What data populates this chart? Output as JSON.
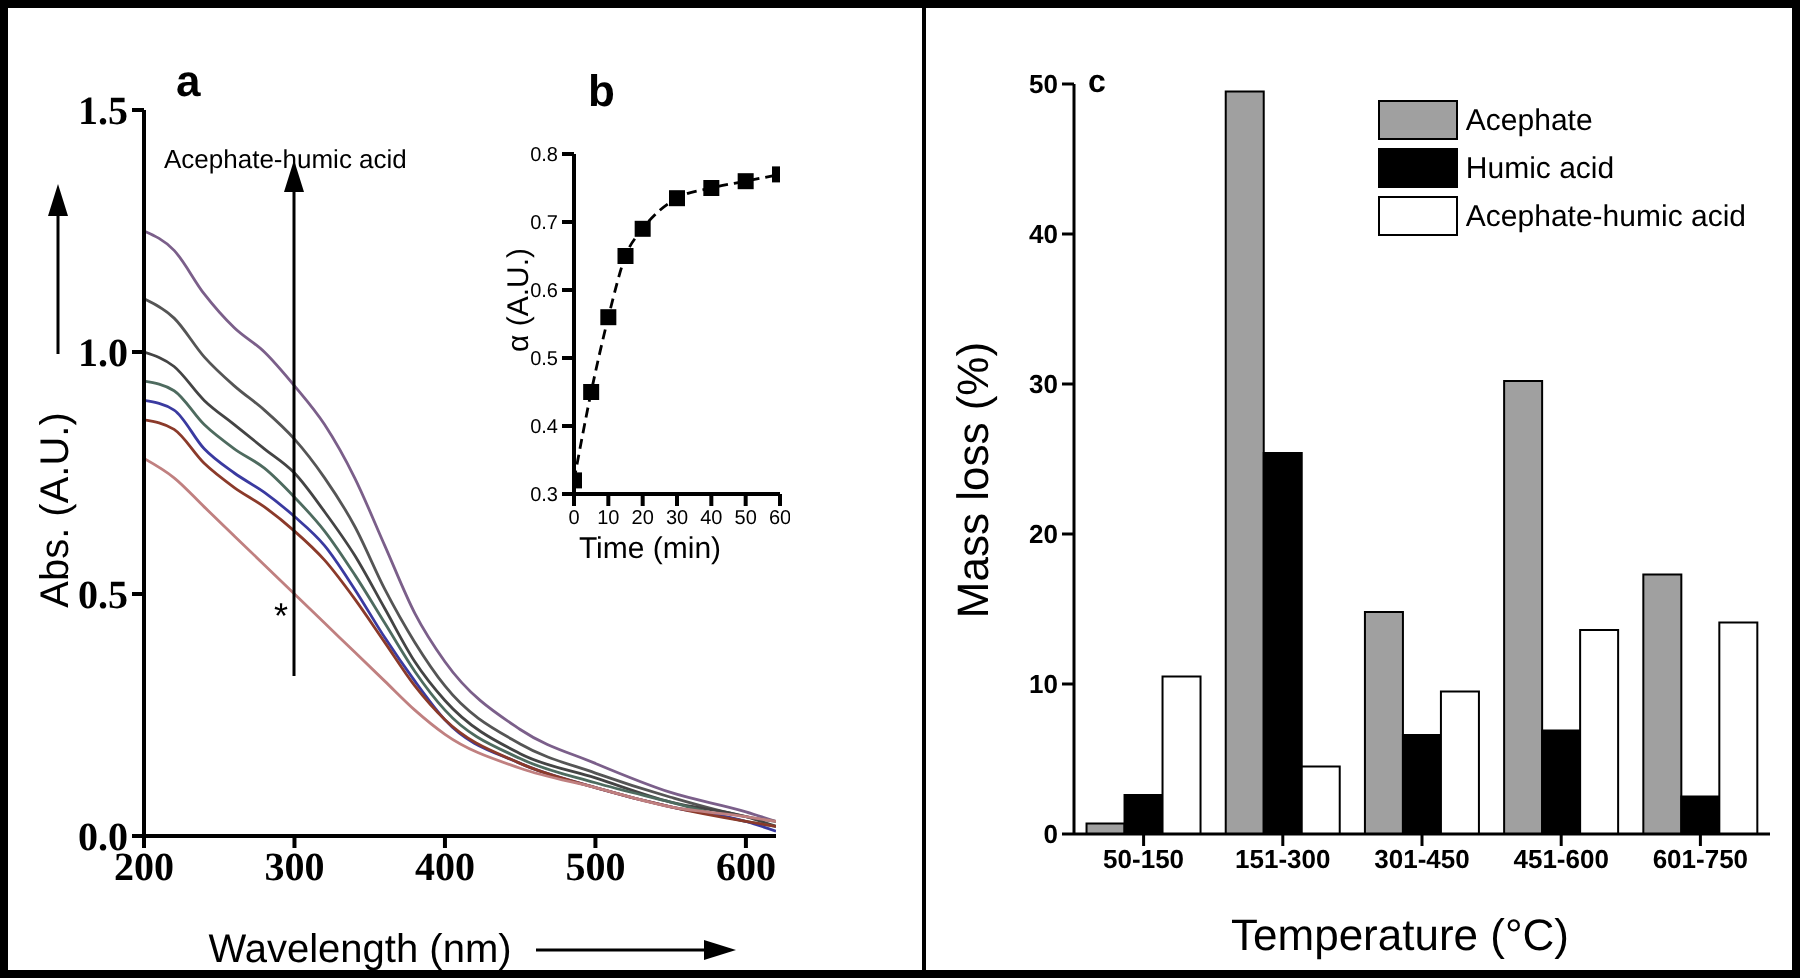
{
  "chart_data": [
    {
      "type": "line",
      "title": "a",
      "xlabel": "Wavelength (nm)",
      "ylabel": "Abs. (A.U.)",
      "annotations": [
        "Acephate-humic acid",
        "*"
      ],
      "x": [
        200,
        220,
        240,
        260,
        280,
        300,
        320,
        340,
        360,
        380,
        400,
        450,
        500,
        550,
        600,
        620
      ],
      "series": [
        {
          "color": "#7b5f8a",
          "values": [
            1.25,
            1.21,
            1.12,
            1.05,
            1.0,
            0.93,
            0.85,
            0.74,
            0.6,
            0.46,
            0.36,
            0.22,
            0.15,
            0.09,
            0.05,
            0.03
          ]
        },
        {
          "color": "#555555",
          "values": [
            1.11,
            1.07,
            0.99,
            0.93,
            0.88,
            0.82,
            0.74,
            0.64,
            0.51,
            0.4,
            0.31,
            0.19,
            0.13,
            0.08,
            0.04,
            0.03
          ]
        },
        {
          "color": "#444444",
          "values": [
            1.0,
            0.97,
            0.9,
            0.85,
            0.8,
            0.75,
            0.67,
            0.58,
            0.47,
            0.36,
            0.28,
            0.17,
            0.12,
            0.07,
            0.04,
            0.02
          ]
        },
        {
          "color": "#4e6b5f",
          "values": [
            0.94,
            0.92,
            0.85,
            0.8,
            0.76,
            0.7,
            0.63,
            0.54,
            0.44,
            0.34,
            0.26,
            0.16,
            0.11,
            0.07,
            0.03,
            0.02
          ]
        },
        {
          "color": "#3a3aa0",
          "values": [
            0.9,
            0.88,
            0.8,
            0.75,
            0.71,
            0.66,
            0.6,
            0.51,
            0.41,
            0.32,
            0.24,
            0.15,
            0.1,
            0.06,
            0.03,
            0.01
          ]
        },
        {
          "color": "#8b3a2a",
          "values": [
            0.86,
            0.84,
            0.77,
            0.72,
            0.68,
            0.63,
            0.57,
            0.49,
            0.4,
            0.31,
            0.24,
            0.15,
            0.1,
            0.06,
            0.03,
            0.02
          ]
        },
        {
          "color": "#c08080",
          "values": [
            0.78,
            0.74,
            0.68,
            0.62,
            0.56,
            0.5,
            0.44,
            0.38,
            0.32,
            0.26,
            0.21,
            0.14,
            0.1,
            0.06,
            0.04,
            0.03
          ]
        }
      ],
      "xlim": [
        200,
        620
      ],
      "xticks": [
        200,
        300,
        400,
        500,
        600
      ],
      "ylim": [
        0,
        1.5
      ],
      "yticks": [
        {
          "value": 0,
          "label": "0.0"
        },
        0.5,
        {
          "value": 1,
          "label": "1.0"
        },
        1.5
      ],
      "marker": "none",
      "line_style": "solid"
    },
    {
      "type": "line",
      "title": "b",
      "xlabel": "Time (min)",
      "ylabel": "α (A.U.)",
      "x": [
        0,
        5,
        10,
        15,
        20,
        30,
        40,
        50,
        60
      ],
      "values": [
        0.32,
        0.45,
        0.56,
        0.65,
        0.69,
        0.735,
        0.75,
        0.76,
        0.77
      ],
      "color": "#000000",
      "xlim": [
        0,
        60
      ],
      "xticks": [
        0,
        10,
        20,
        30,
        40,
        50,
        60
      ],
      "ylim": [
        0.3,
        0.8
      ],
      "yticks": [
        0.3,
        0.4,
        0.5,
        0.6,
        0.7,
        0.8
      ],
      "marker": "square",
      "line_style": "dashed"
    },
    {
      "type": "bar",
      "title": "c",
      "xlabel": "Temperature (°C)",
      "ylabel": "Mass loss (%)",
      "categories": [
        "50-150",
        "151-300",
        "301-450",
        "451-600",
        "601-750"
      ],
      "series": [
        {
          "name": "Acephate",
          "color": "#a0a0a0",
          "values": [
            0.7,
            49.5,
            14.8,
            30.2,
            17.3
          ]
        },
        {
          "name": "Humic acid",
          "color": "#000000",
          "values": [
            2.6,
            25.4,
            6.6,
            6.9,
            2.5
          ]
        },
        {
          "name": "Acephate-humic acid",
          "color": "#ffffff",
          "values": [
            10.5,
            4.5,
            9.5,
            13.6,
            14.1
          ]
        }
      ],
      "ylim": [
        0,
        50
      ],
      "yticks": [
        0,
        10,
        20,
        30,
        40,
        50
      ],
      "legend": "top right"
    }
  ]
}
